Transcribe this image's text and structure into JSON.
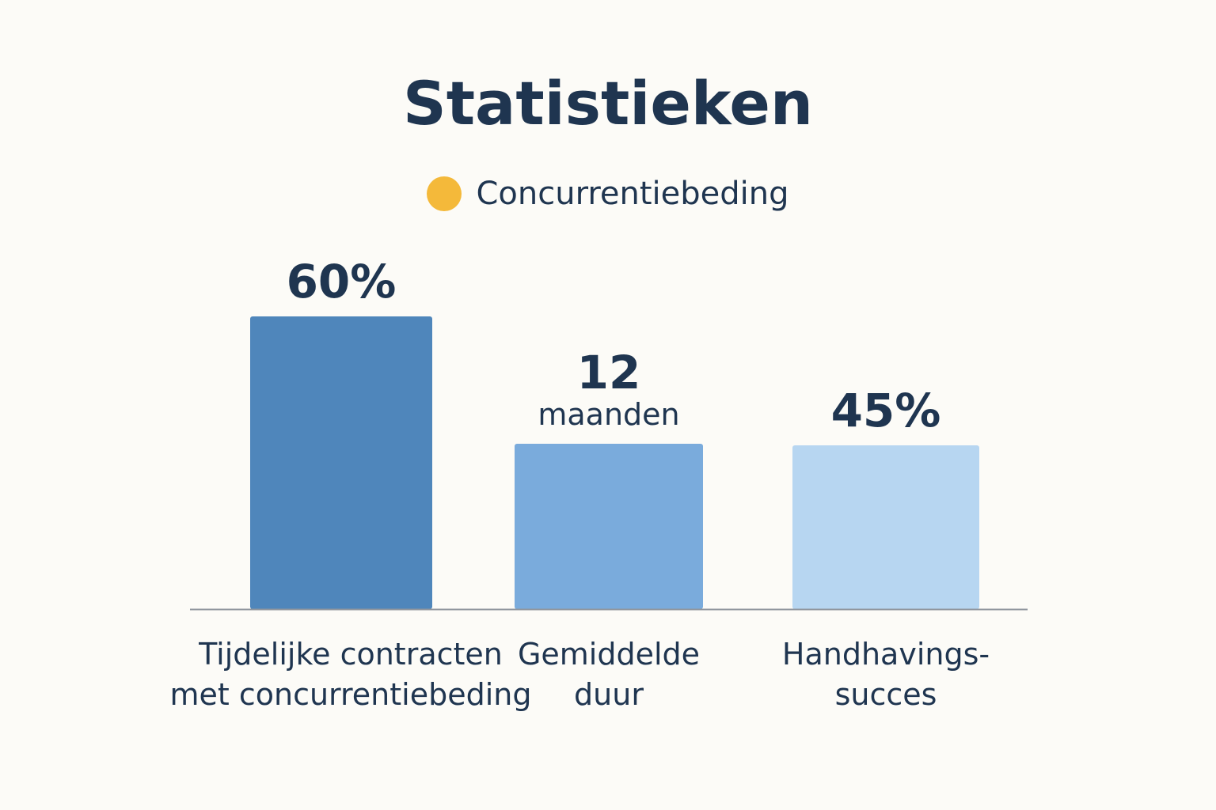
{
  "chart_data": {
    "type": "bar",
    "title": "Statistieken",
    "legend": {
      "label": "Concurrentiebeding",
      "color": "#f4b93a",
      "placement": "top-center"
    },
    "xlabel": "",
    "ylabel": "",
    "grid": false,
    "categories": [
      [
        "Tijdelijke contracten",
        "met concurrentiebeding"
      ],
      [
        "Gemiddelde",
        "duur"
      ],
      [
        "Handhavings-",
        "succes"
      ]
    ],
    "values": [
      60,
      12,
      45
    ],
    "value_labels": [
      [
        "60%"
      ],
      [
        "12",
        "maanden"
      ],
      [
        "45%"
      ]
    ],
    "bar_colors": [
      "#4f86bb",
      "#7aabdc",
      "#b7d6f1"
    ]
  }
}
